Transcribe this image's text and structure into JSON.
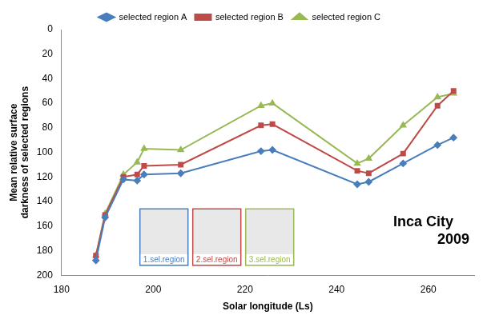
{
  "chart_data": {
    "type": "line",
    "x_label": "Solar longitude (Ls)",
    "y_label": "Mean relative surface darkness of selected regions",
    "annotation": [
      "Inca City",
      "2009"
    ],
    "region_labels": [
      "1.sel.region",
      "2.sel.region",
      "3.sel.region"
    ],
    "x": [
      187.5,
      189.5,
      193.5,
      196.5,
      198,
      206,
      223.5,
      226,
      244.5,
      247,
      254.5,
      262,
      265.5
    ],
    "series": [
      {
        "name": "selected region A",
        "color": "#4a7ebb",
        "marker": "diamond",
        "values": [
          188,
          153,
          122,
          123,
          118,
          117,
          99,
          98,
          126,
          124,
          109,
          94,
          88
        ]
      },
      {
        "name": "selected region B",
        "color": "#be4b48",
        "marker": "square",
        "values": [
          184,
          151,
          120,
          118,
          111,
          110,
          78,
          77,
          115,
          117,
          101,
          62,
          50
        ]
      },
      {
        "name": "selected region C",
        "color": "#98b954",
        "marker": "triangle",
        "values": [
          184,
          150,
          118,
          108,
          97,
          98,
          62,
          60,
          109,
          105,
          78,
          55,
          52
        ]
      }
    ],
    "xlim": [
      180,
      270
    ],
    "xticks": [
      180,
      200,
      220,
      240,
      260
    ],
    "ylim": [
      200,
      0
    ],
    "yticks": [
      0,
      20,
      40,
      60,
      80,
      100,
      120,
      140,
      160,
      180,
      200
    ],
    "grid": false,
    "legend": "top"
  }
}
